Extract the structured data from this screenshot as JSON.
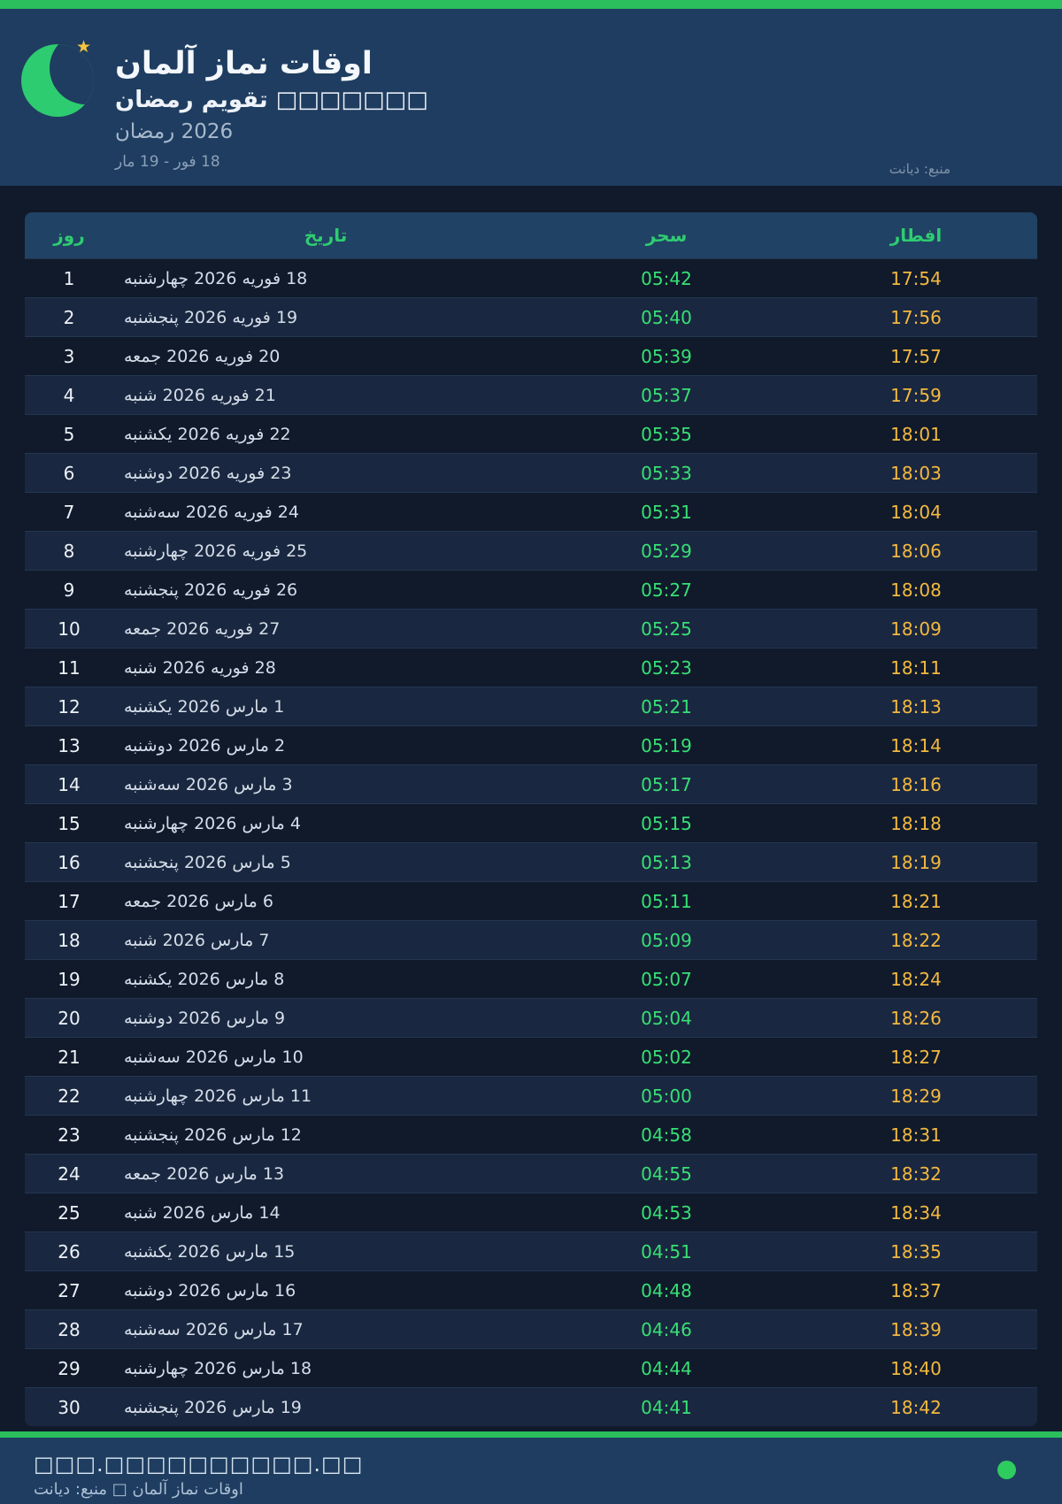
{
  "header": {
    "title": "اوقات نماز آلمان",
    "subtitle": "تقویم رمضان □□□□□□□",
    "season": "رمضان‎ 2026",
    "date_range": "18 فور - 19 مار",
    "source": "منبع: دیانت",
    "star_icon": "★"
  },
  "table": {
    "headers": {
      "day": "روز",
      "date": "تاریخ",
      "suhoor": "سحر",
      "iftar": "افطار"
    },
    "rows": [
      {
        "day": "1",
        "date": "18 فوریه 2026 چهارشنبه",
        "suhoor": "05:42",
        "iftar": "17:54"
      },
      {
        "day": "2",
        "date": "19 فوریه 2026 پنجشنبه",
        "suhoor": "05:40",
        "iftar": "17:56"
      },
      {
        "day": "3",
        "date": "20 فوریه 2026 جمعه",
        "suhoor": "05:39",
        "iftar": "17:57"
      },
      {
        "day": "4",
        "date": "21 فوریه 2026 شنبه",
        "suhoor": "05:37",
        "iftar": "17:59"
      },
      {
        "day": "5",
        "date": "22 فوریه 2026 یکشنبه",
        "suhoor": "05:35",
        "iftar": "18:01"
      },
      {
        "day": "6",
        "date": "23 فوریه 2026 دوشنبه",
        "suhoor": "05:33",
        "iftar": "18:03"
      },
      {
        "day": "7",
        "date": "24 فوریه 2026 سه‌شنبه",
        "suhoor": "05:31",
        "iftar": "18:04"
      },
      {
        "day": "8",
        "date": "25 فوریه 2026 چهارشنبه",
        "suhoor": "05:29",
        "iftar": "18:06"
      },
      {
        "day": "9",
        "date": "26 فوریه 2026 پنجشنبه",
        "suhoor": "05:27",
        "iftar": "18:08"
      },
      {
        "day": "10",
        "date": "27 فوریه 2026 جمعه",
        "suhoor": "05:25",
        "iftar": "18:09"
      },
      {
        "day": "11",
        "date": "28 فوریه 2026 شنبه",
        "suhoor": "05:23",
        "iftar": "18:11"
      },
      {
        "day": "12",
        "date": "1 مارس 2026 یکشنبه",
        "suhoor": "05:21",
        "iftar": "18:13"
      },
      {
        "day": "13",
        "date": "2 مارس 2026 دوشنبه",
        "suhoor": "05:19",
        "iftar": "18:14"
      },
      {
        "day": "14",
        "date": "3 مارس 2026 سه‌شنبه",
        "suhoor": "05:17",
        "iftar": "18:16"
      },
      {
        "day": "15",
        "date": "4 مارس 2026 چهارشنبه",
        "suhoor": "05:15",
        "iftar": "18:18"
      },
      {
        "day": "16",
        "date": "5 مارس 2026 پنجشنبه",
        "suhoor": "05:13",
        "iftar": "18:19"
      },
      {
        "day": "17",
        "date": "6 مارس 2026 جمعه",
        "suhoor": "05:11",
        "iftar": "18:21"
      },
      {
        "day": "18",
        "date": "7 مارس 2026 شنبه",
        "suhoor": "05:09",
        "iftar": "18:22"
      },
      {
        "day": "19",
        "date": "8 مارس 2026 یکشنبه",
        "suhoor": "05:07",
        "iftar": "18:24"
      },
      {
        "day": "20",
        "date": "9 مارس 2026 دوشنبه",
        "suhoor": "05:04",
        "iftar": "18:26"
      },
      {
        "day": "21",
        "date": "10 مارس 2026 سه‌شنبه",
        "suhoor": "05:02",
        "iftar": "18:27"
      },
      {
        "day": "22",
        "date": "11 مارس 2026 چهارشنبه",
        "suhoor": "05:00",
        "iftar": "18:29"
      },
      {
        "day": "23",
        "date": "12 مارس 2026 پنجشنبه",
        "suhoor": "04:58",
        "iftar": "18:31"
      },
      {
        "day": "24",
        "date": "13 مارس 2026 جمعه",
        "suhoor": "04:55",
        "iftar": "18:32"
      },
      {
        "day": "25",
        "date": "14 مارس 2026 شنبه",
        "suhoor": "04:53",
        "iftar": "18:34"
      },
      {
        "day": "26",
        "date": "15 مارس 2026 یکشنبه",
        "suhoor": "04:51",
        "iftar": "18:35"
      },
      {
        "day": "27",
        "date": "16 مارس 2026 دوشنبه",
        "suhoor": "04:48",
        "iftar": "18:37"
      },
      {
        "day": "28",
        "date": "17 مارس 2026 سه‌شنبه",
        "suhoor": "04:46",
        "iftar": "18:39"
      },
      {
        "day": "29",
        "date": "18 مارس 2026 چهارشنبه",
        "suhoor": "04:44",
        "iftar": "18:40"
      },
      {
        "day": "30",
        "date": "19 مارس 2026 پنجشنبه",
        "suhoor": "04:41",
        "iftar": "18:42"
      }
    ]
  },
  "footer": {
    "url": "□□□.□□□□□□□□□□.□□",
    "credit": "اوقات نماز آلمان □ منبع: دیانت"
  },
  "colors": {
    "accent_green": "#2abf5c",
    "moon_green": "#2ecc71",
    "suhoor_green": "#37e074",
    "iftar_amber": "#f3b93f",
    "header_navy": "#1f3d60",
    "page_dark": "#101a2b",
    "row_stripe": "#1a2740",
    "star_gold": "#f5c542"
  }
}
